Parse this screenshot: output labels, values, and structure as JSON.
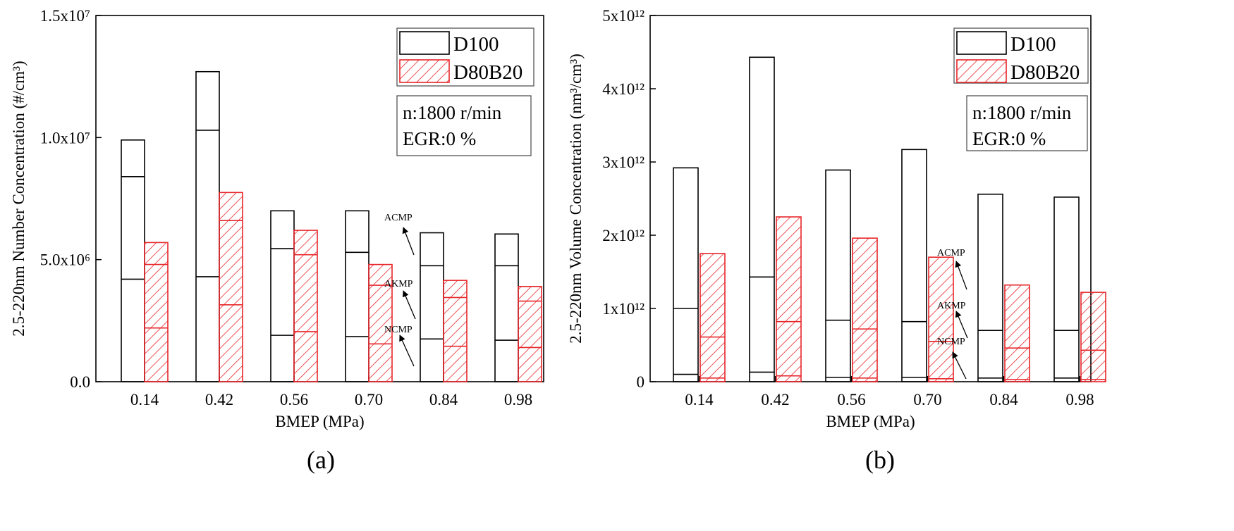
{
  "chart_data": [
    {
      "type": "bar",
      "subtype": "stacked",
      "panel_label": "(a)",
      "title": "",
      "xlabel": "BMEP (MPa)",
      "ylabel": "2.5-220nm Number Concentration (#/cm³)",
      "ylim": [
        0,
        15000000
      ],
      "yticks": [
        {
          "value": 0,
          "label": "0.0"
        },
        {
          "value": 5000000,
          "label": "5.0x10⁶"
        },
        {
          "value": 10000000,
          "label": "1.0x10⁷"
        },
        {
          "value": 15000000,
          "label": "1.5x10⁷"
        }
      ],
      "categories": [
        "0.14",
        "0.42",
        "0.56",
        "0.70",
        "0.84",
        "0.98"
      ],
      "series": [
        {
          "name": "D100",
          "color": "#000000",
          "fill": "none",
          "bounds": [
            [
              4200000,
              8400000,
              9900000
            ],
            [
              4300000,
              10300000,
              12700000
            ],
            [
              1900000,
              5450000,
              7000000
            ],
            [
              1850000,
              5300000,
              7000000
            ],
            [
              1750000,
              4750000,
              6100000
            ],
            [
              1700000,
              4750000,
              6050000
            ]
          ]
        },
        {
          "name": "D80B20",
          "color": "#e8262a",
          "fill": "hatch",
          "bounds": [
            [
              2200000,
              4800000,
              5700000
            ],
            [
              3150000,
              6600000,
              7750000
            ],
            [
              2050000,
              5200000,
              6200000
            ],
            [
              1550000,
              3950000,
              4800000
            ],
            [
              1450000,
              3450000,
              4150000
            ],
            [
              1400000,
              3300000,
              3900000
            ]
          ]
        }
      ],
      "legend": {
        "position": "top-right",
        "items": [
          "D100",
          "D80B20"
        ]
      },
      "note_lines": [
        "n:1800 r/min",
        "EGR:0 %"
      ],
      "mode_annotations": [
        "ACMP",
        "AKMP",
        "NCMP"
      ]
    },
    {
      "type": "bar",
      "subtype": "stacked",
      "panel_label": "(b)",
      "title": "",
      "xlabel": "BMEP (MPa)",
      "ylabel": "2.5-220nm Volume Concentration (nm³/cm³)",
      "ylim": [
        0,
        5000000000000
      ],
      "yticks": [
        {
          "value": 0,
          "label": "0"
        },
        {
          "value": 1000000000000,
          "label": "1x10¹²"
        },
        {
          "value": 2000000000000,
          "label": "2x10¹²"
        },
        {
          "value": 3000000000000,
          "label": "3x10¹²"
        },
        {
          "value": 4000000000000,
          "label": "4x10¹²"
        },
        {
          "value": 5000000000000,
          "label": "5x10¹²"
        }
      ],
      "categories": [
        "0.14",
        "0.42",
        "0.56",
        "0.70",
        "0.84",
        "0.98"
      ],
      "series": [
        {
          "name": "D100",
          "color": "#000000",
          "fill": "none",
          "bounds": [
            [
              100000000000,
              1000000000000,
              2920000000000
            ],
            [
              130000000000,
              1430000000000,
              4430000000000
            ],
            [
              60000000000,
              840000000000,
              2890000000000
            ],
            [
              60000000000,
              820000000000,
              3170000000000
            ],
            [
              50000000000,
              700000000000,
              2560000000000
            ],
            [
              50000000000,
              700000000000,
              2520000000000
            ]
          ]
        },
        {
          "name": "D80B20",
          "color": "#e8262a",
          "fill": "hatch",
          "bounds": [
            [
              50000000000,
              610000000000,
              1750000000000
            ],
            [
              80000000000,
              820000000000,
              2250000000000
            ],
            [
              50000000000,
              720000000000,
              1960000000000
            ],
            [
              40000000000,
              550000000000,
              1700000000000
            ],
            [
              30000000000,
              460000000000,
              1320000000000
            ],
            [
              30000000000,
              430000000000,
              1220000000000
            ]
          ]
        }
      ],
      "legend": {
        "position": "top-right",
        "items": [
          "D100",
          "D80B20"
        ]
      },
      "note_lines": [
        "n:1800 r/min",
        "EGR:0 %"
      ],
      "mode_annotations": [
        "ACMP",
        "AKMP",
        "NCMP"
      ]
    }
  ]
}
